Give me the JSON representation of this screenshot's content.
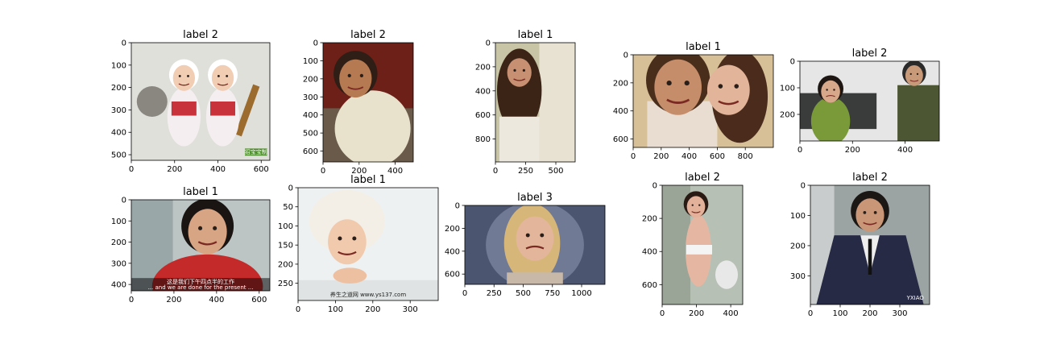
{
  "figure": {
    "layout": "grid",
    "rows": 2,
    "cols": 5
  },
  "chart_data": [
    {
      "type": "image",
      "title": "label 2",
      "x_ticks": [
        0,
        200,
        400,
        600
      ],
      "y_ticks": [
        0,
        100,
        200,
        300,
        400,
        500
      ],
      "xlim": [
        0,
        640
      ],
      "ylim": [
        0,
        525
      ],
      "scene": "two-babies-cooking",
      "bg": "#dfe0da",
      "overlay_label": "招宝宝制"
    },
    {
      "type": "image",
      "title": "label 2",
      "x_ticks": [
        0,
        200,
        400
      ],
      "y_ticks": [
        0,
        100,
        200,
        300,
        400,
        500,
        600
      ],
      "xlim": [
        0,
        500
      ],
      "ylim": [
        0,
        660
      ],
      "scene": "baby-in-blanket",
      "bg": "#6d2018"
    },
    {
      "type": "image",
      "title": "label 1",
      "x_ticks": [
        0,
        250,
        500
      ],
      "y_ticks": [
        0,
        200,
        400,
        600,
        800
      ],
      "xlim": [
        0,
        660
      ],
      "ylim": [
        0,
        990
      ],
      "scene": "smiling-woman",
      "bg": "#c8c4a6"
    },
    {
      "type": "image",
      "title": "label 1",
      "x_ticks": [
        0,
        200,
        400,
        600,
        800
      ],
      "y_ticks": [
        0,
        200,
        400,
        600
      ],
      "xlim": [
        0,
        1000
      ],
      "ylim": [
        0,
        660
      ],
      "scene": "smiling-couple",
      "bg": "#d7c097"
    },
    {
      "type": "image",
      "title": "label 2",
      "x_ticks": [
        0,
        200,
        400
      ],
      "y_ticks": [
        0,
        100,
        200
      ],
      "xlim": [
        0,
        530
      ],
      "ylim": [
        0,
        300
      ],
      "scene": "woman-crying-on-sofa",
      "bg": "#e6e6e6"
    },
    {
      "type": "image",
      "title": "label 1",
      "x_ticks": [
        0,
        200,
        400,
        600
      ],
      "y_ticks": [
        0,
        100,
        200,
        300,
        400
      ],
      "xlim": [
        0,
        650
      ],
      "ylim": [
        0,
        430
      ],
      "scene": "man-red-jacket",
      "bg": "#bcc5c4",
      "overlay_label": "这是我们下午四点半的工作",
      "overlay_sublabel": "... and we are done for the present ..."
    },
    {
      "type": "image",
      "title": "label 1",
      "x_ticks": [
        0,
        100,
        200,
        300
      ],
      "y_ticks": [
        0,
        50,
        100,
        150,
        200,
        250
      ],
      "xlim": [
        0,
        375
      ],
      "ylim": [
        0,
        295
      ],
      "scene": "baby-flower-hat",
      "bg": "#eef1f1",
      "overlay_label": "养生之道网 www.ys137.com"
    },
    {
      "type": "image",
      "title": "label 3",
      "x_ticks": [
        0,
        250,
        500,
        750,
        1000
      ],
      "y_ticks": [
        0,
        200,
        400,
        600
      ],
      "xlim": [
        0,
        1200
      ],
      "ylim": [
        0,
        690
      ],
      "scene": "blonde-woman-frowning",
      "bg": "#4c5570"
    },
    {
      "type": "image",
      "title": "label 2",
      "x_ticks": [
        0,
        200,
        400
      ],
      "y_ticks": [
        0,
        200,
        400,
        600
      ],
      "xlim": [
        0,
        470
      ],
      "ylim": [
        0,
        720
      ],
      "scene": "woman-bathroom",
      "bg": "#b7c0b4"
    },
    {
      "type": "image",
      "title": "label 2",
      "x_ticks": [
        0,
        100,
        200,
        300
      ],
      "y_ticks": [
        0,
        100,
        200,
        300
      ],
      "xlim": [
        0,
        400
      ],
      "ylim": [
        0,
        395
      ],
      "scene": "man-in-suit",
      "bg": "#9ba3a3",
      "overlay_label": "YXIAO"
    }
  ]
}
